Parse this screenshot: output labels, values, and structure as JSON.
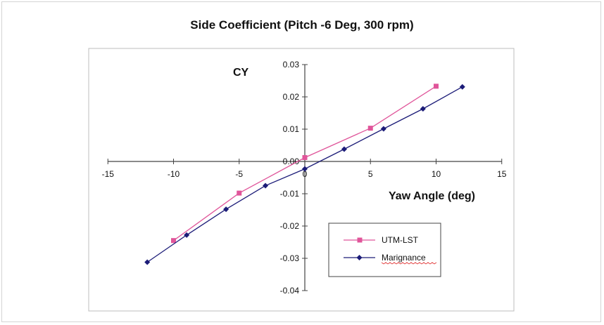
{
  "chart_data": {
    "type": "line",
    "title": "Side Coefficient (Pitch -6 Deg, 300 rpm)",
    "xlabel": "Yaw Angle (deg)",
    "ylabel": "CY",
    "xlim": [
      -15,
      15
    ],
    "ylim": [
      -0.04,
      0.03
    ],
    "x_ticks": [
      "-15",
      "-10",
      "-5",
      "0",
      "5",
      "10",
      "15"
    ],
    "y_ticks": [
      "0.03",
      "0.02",
      "0.01",
      "0.00",
      "-0.01",
      "-0.02",
      "-0.03",
      "-0.04"
    ],
    "grid": false,
    "legend_position": "bottom-right",
    "series": [
      {
        "name": "UTM-LST",
        "color": "#e0559a",
        "marker": "square",
        "x": [
          -10,
          -5,
          0,
          5,
          10
        ],
        "y": [
          -0.0245,
          -0.0098,
          0.0012,
          0.0103,
          0.0233
        ]
      },
      {
        "name": "Marignance",
        "color": "#1c1c78",
        "marker": "diamond",
        "x": [
          -12,
          -9,
          -6,
          -3,
          0,
          3,
          6,
          9,
          12
        ],
        "y": [
          -0.0312,
          -0.0228,
          -0.0148,
          -0.0075,
          -0.0023,
          0.0038,
          0.0101,
          0.0163,
          0.0231
        ]
      }
    ]
  }
}
